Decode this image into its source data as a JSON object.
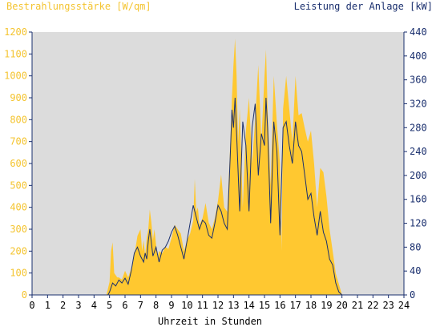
{
  "chart_data": {
    "type": "area",
    "title_left": "Bestrahlungsstärke [W/qm]",
    "title_right": "Leistung der Anlage [kW]",
    "xlabel": "Uhrzeit in Stunden",
    "x_ticks": [
      "0",
      "1",
      "2",
      "3",
      "4",
      "5",
      "6",
      "7",
      "8",
      "9",
      "10",
      "11",
      "12",
      "13",
      "14",
      "15",
      "16",
      "17",
      "18",
      "19",
      "20",
      "21",
      "22",
      "23",
      "24"
    ],
    "ylim_left": [
      0,
      1200
    ],
    "ylim_right": [
      0,
      440
    ],
    "y_ticks_left": [
      "0",
      "100",
      "200",
      "300",
      "400",
      "500",
      "600",
      "700",
      "800",
      "900",
      "1000",
      "1100",
      "1200"
    ],
    "y_ticks_right": [
      "0",
      "40",
      "80",
      "120",
      "160",
      "200",
      "240",
      "280",
      "320",
      "360",
      "400",
      "440"
    ],
    "grid": false,
    "colors": {
      "plot_bg": "#dcdcdc",
      "irradiance_fill": "#ffc830",
      "power_line": "#1a2f6e",
      "left_axis_text": "#f4c430",
      "right_axis_text": "#1a2f6e",
      "axis_line": "#1a2f6e"
    },
    "series": [
      {
        "axis": "left",
        "kind": "area",
        "x": [
          0,
          4.8,
          5.0,
          5.1,
          5.2,
          5.3,
          5.4,
          5.5,
          5.6,
          5.8,
          6.0,
          6.2,
          6.4,
          6.6,
          6.8,
          7.0,
          7.1,
          7.2,
          7.3,
          7.4,
          7.5,
          7.6,
          7.7,
          7.8,
          7.9,
          8.0,
          8.1,
          8.2,
          8.4,
          8.6,
          8.8,
          9.0,
          9.2,
          9.4,
          9.6,
          9.8,
          10.0,
          10.2,
          10.4,
          10.5,
          10.6,
          10.7,
          10.8,
          11.0,
          11.2,
          11.4,
          11.6,
          11.8,
          12.0,
          12.2,
          12.4,
          12.6,
          12.8,
          12.9,
          13.0,
          13.1,
          13.2,
          13.3,
          13.4,
          13.6,
          13.8,
          14.0,
          14.2,
          14.4,
          14.6,
          14.8,
          15.0,
          15.1,
          15.2,
          15.4,
          15.6,
          15.8,
          16.0,
          16.1,
          16.2,
          16.4,
          16.6,
          16.8,
          17.0,
          17.2,
          17.4,
          17.6,
          17.8,
          18.0,
          18.2,
          18.4,
          18.6,
          18.8,
          19.0,
          19.2,
          19.4,
          19.6,
          19.8,
          20.0,
          20.2,
          24
        ],
        "y": [
          0,
          0,
          60,
          200,
          240,
          100,
          90,
          80,
          80,
          70,
          110,
          80,
          120,
          180,
          270,
          300,
          200,
          250,
          180,
          260,
          300,
          390,
          330,
          250,
          300,
          230,
          170,
          200,
          190,
          220,
          210,
          260,
          320,
          300,
          280,
          200,
          250,
          280,
          340,
          530,
          380,
          400,
          320,
          350,
          420,
          330,
          300,
          350,
          430,
          550,
          400,
          380,
          700,
          900,
          1050,
          1170,
          1000,
          700,
          850,
          400,
          750,
          900,
          600,
          800,
          1050,
          700,
          1000,
          1120,
          850,
          500,
          1000,
          780,
          600,
          200,
          850,
          1000,
          850,
          700,
          1000,
          820,
          830,
          760,
          700,
          750,
          600,
          400,
          580,
          560,
          450,
          300,
          200,
          100,
          50,
          0,
          0,
          0
        ]
      },
      {
        "axis": "right",
        "kind": "line",
        "x": [
          0,
          4.9,
          5.0,
          5.2,
          5.4,
          5.6,
          5.8,
          6.0,
          6.2,
          6.4,
          6.6,
          6.8,
          7.0,
          7.2,
          7.3,
          7.4,
          7.5,
          7.6,
          7.8,
          8.0,
          8.2,
          8.4,
          8.6,
          8.8,
          9.0,
          9.2,
          9.4,
          9.6,
          9.8,
          10.0,
          10.2,
          10.4,
          10.5,
          10.6,
          10.8,
          11.0,
          11.2,
          11.4,
          11.6,
          11.8,
          12.0,
          12.2,
          12.4,
          12.6,
          12.8,
          12.9,
          13.0,
          13.1,
          13.2,
          13.4,
          13.6,
          13.8,
          14.0,
          14.2,
          14.4,
          14.6,
          14.8,
          15.0,
          15.1,
          15.2,
          15.4,
          15.6,
          15.8,
          16.0,
          16.2,
          16.4,
          16.6,
          16.8,
          17.0,
          17.2,
          17.4,
          17.6,
          17.8,
          18.0,
          18.2,
          18.4,
          18.6,
          18.8,
          19.0,
          19.2,
          19.4,
          19.6,
          19.8,
          20.0,
          24
        ],
        "y": [
          0,
          0,
          5,
          20,
          15,
          25,
          20,
          28,
          18,
          40,
          70,
          80,
          65,
          55,
          70,
          60,
          90,
          110,
          65,
          80,
          55,
          75,
          80,
          90,
          105,
          115,
          100,
          80,
          60,
          90,
          120,
          150,
          140,
          130,
          110,
          125,
          120,
          100,
          95,
          120,
          150,
          140,
          120,
          110,
          240,
          310,
          280,
          330,
          270,
          140,
          290,
          250,
          140,
          280,
          320,
          200,
          270,
          250,
          330,
          280,
          120,
          290,
          240,
          100,
          280,
          290,
          250,
          220,
          290,
          250,
          240,
          200,
          160,
          170,
          130,
          100,
          140,
          105,
          90,
          60,
          50,
          20,
          5,
          0,
          0
        ]
      }
    ]
  }
}
